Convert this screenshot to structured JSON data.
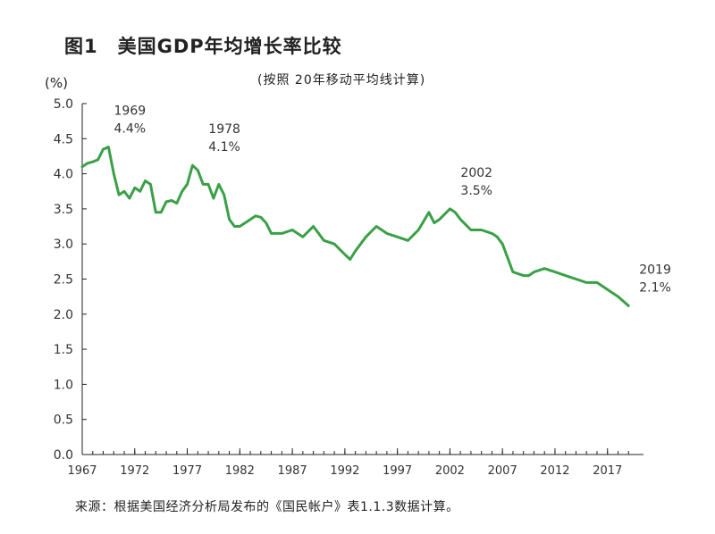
{
  "figure": {
    "number": "图1",
    "title": "美国GDP年均增长率比较",
    "subtitle": "(按照 20年移动平均线计算)",
    "unit": "(%)",
    "source": "来源：根据美国经济分析局发布的《国民帐户》表1.1.3数据计算。"
  },
  "chart_data": {
    "type": "line",
    "title": "美国GDP年均增长率比较",
    "subtitle": "(按照 20年移动平均线计算)",
    "ylabel": "(%)",
    "xlabel": "",
    "ylim": [
      0,
      5
    ],
    "xlim": [
      1967,
      2020
    ],
    "y_ticks": [
      "0.0",
      "0.5",
      "1.0",
      "1.5",
      "2.0",
      "2.5",
      "3.0",
      "3.5",
      "4.0",
      "4.5",
      "5.0"
    ],
    "x_ticks": [
      "1967",
      "1972",
      "1977",
      "1982",
      "1987",
      "1992",
      "1997",
      "2002",
      "2007",
      "2012",
      "2017"
    ],
    "grid": false,
    "color": "#3aa047",
    "series": [
      {
        "x": [
          1967,
          1967.5,
          1968,
          1968.5,
          1969,
          1969.5,
          1970,
          1970.5,
          1971,
          1971.5,
          1972,
          1972.5,
          1973,
          1973.5,
          1974,
          1974.5,
          1975,
          1975.5,
          1976,
          1976.5,
          1977,
          1977.5,
          1978,
          1978.5,
          1979,
          1979.5,
          1980,
          1980.5,
          1981,
          1981.5,
          1982,
          1982.5,
          1983,
          1983.5,
          1984,
          1984.5,
          1985,
          1985.5,
          1986,
          1987,
          1988,
          1989,
          1990,
          1991,
          1992,
          1992.5,
          1993,
          1994,
          1995,
          1996,
          1997,
          1998,
          1999,
          2000,
          2000.5,
          2001,
          2002,
          2002.5,
          2003,
          2004,
          2005,
          2006,
          2006.5,
          2007,
          2008,
          2009,
          2009.5,
          2010,
          2011,
          2012,
          2013,
          2014,
          2015,
          2016,
          2017,
          2018,
          2019
        ],
        "y": [
          4.1,
          4.15,
          4.17,
          4.2,
          4.35,
          4.38,
          4.0,
          3.7,
          3.75,
          3.65,
          3.8,
          3.75,
          3.9,
          3.85,
          3.45,
          3.45,
          3.6,
          3.62,
          3.58,
          3.75,
          3.85,
          4.12,
          4.05,
          3.85,
          3.85,
          3.65,
          3.85,
          3.7,
          3.35,
          3.25,
          3.25,
          3.3,
          3.35,
          3.4,
          3.38,
          3.3,
          3.15,
          3.15,
          3.15,
          3.2,
          3.1,
          3.25,
          3.05,
          3.0,
          2.85,
          2.78,
          2.9,
          3.1,
          3.25,
          3.15,
          3.1,
          3.05,
          3.2,
          3.45,
          3.3,
          3.35,
          3.5,
          3.45,
          3.35,
          3.2,
          3.2,
          3.15,
          3.1,
          3.0,
          2.6,
          2.55,
          2.55,
          2.6,
          2.65,
          2.6,
          2.55,
          2.5,
          2.45,
          2.45,
          2.35,
          2.25,
          2.12
        ]
      }
    ],
    "annotations": [
      {
        "year": "1969",
        "value": "4.4%",
        "x": 1969,
        "y": 4.38
      },
      {
        "year": "1978",
        "value": "4.1%",
        "x": 1978,
        "y": 4.12
      },
      {
        "year": "2002",
        "value": "3.5%",
        "x": 2002,
        "y": 3.5
      },
      {
        "year": "2019",
        "value": "2.1%",
        "x": 2019,
        "y": 2.12
      }
    ]
  }
}
